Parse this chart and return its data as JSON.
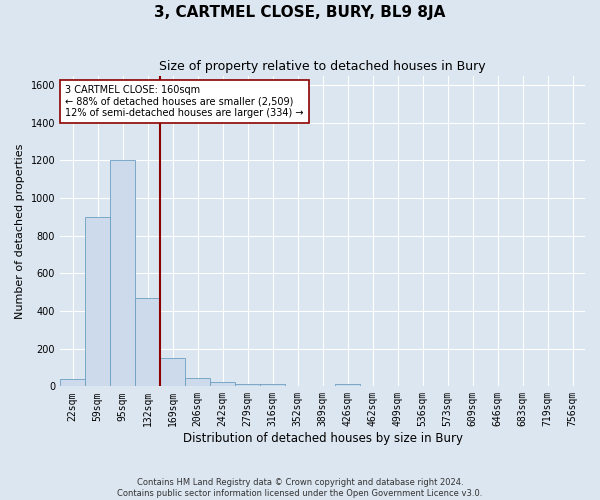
{
  "title": "3, CARTMEL CLOSE, BURY, BL9 8JA",
  "subtitle": "Size of property relative to detached houses in Bury",
  "xlabel": "Distribution of detached houses by size in Bury",
  "ylabel": "Number of detached properties",
  "categories": [
    "22sqm",
    "59sqm",
    "95sqm",
    "132sqm",
    "169sqm",
    "206sqm",
    "242sqm",
    "279sqm",
    "316sqm",
    "352sqm",
    "389sqm",
    "426sqm",
    "462sqm",
    "499sqm",
    "536sqm",
    "573sqm",
    "609sqm",
    "646sqm",
    "683sqm",
    "719sqm",
    "756sqm"
  ],
  "values": [
    40,
    900,
    1200,
    470,
    150,
    45,
    25,
    12,
    10,
    0,
    0,
    15,
    0,
    0,
    0,
    0,
    0,
    0,
    0,
    0,
    0
  ],
  "bar_color": "#cddaeb",
  "bar_edge_color": "#6a9fc0",
  "vline_color": "#8b0000",
  "annotation_text": "3 CARTMEL CLOSE: 160sqm\n← 88% of detached houses are smaller (2,509)\n12% of semi-detached houses are larger (334) →",
  "annotation_box_color": "#ffffff",
  "annotation_box_edge": "#8b0000",
  "ylim": [
    0,
    1650
  ],
  "yticks": [
    0,
    200,
    400,
    600,
    800,
    1000,
    1200,
    1400,
    1600
  ],
  "background_color": "#dce6f0",
  "plot_bg_color": "#dce6f0",
  "grid_color": "#ffffff",
  "footnote": "Contains HM Land Registry data © Crown copyright and database right 2024.\nContains public sector information licensed under the Open Government Licence v3.0.",
  "title_fontsize": 11,
  "subtitle_fontsize": 9,
  "xlabel_fontsize": 8.5,
  "ylabel_fontsize": 8,
  "tick_fontsize": 7,
  "annot_fontsize": 7,
  "footnote_fontsize": 6
}
